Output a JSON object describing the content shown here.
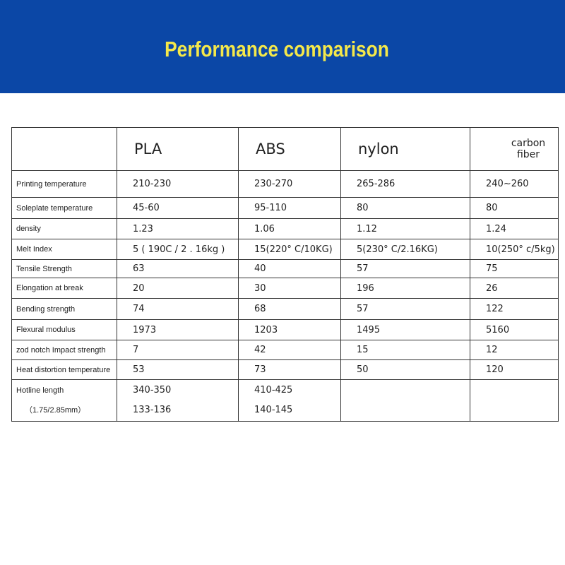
{
  "header": {
    "title": "Performance comparison"
  },
  "table": {
    "columns": [
      "PLA",
      "ABS",
      "nylon",
      "carbon fiber"
    ],
    "rows": [
      {
        "label": [
          "Printing temperature"
        ],
        "values": [
          [
            "210-230"
          ],
          [
            "230-270"
          ],
          [
            "265-286"
          ],
          [
            "240~260"
          ]
        ]
      },
      {
        "label": [
          "Soleplate temperature"
        ],
        "values": [
          [
            "45-60"
          ],
          [
            "95-110"
          ],
          [
            "80"
          ],
          [
            "80"
          ]
        ]
      },
      {
        "label": [
          "density"
        ],
        "values": [
          [
            "1.23"
          ],
          [
            "1.06"
          ],
          [
            "1.12"
          ],
          [
            "1.24"
          ]
        ]
      },
      {
        "label": [
          "Melt Index"
        ],
        "values": [
          [
            "5 ( 190C / 2 . 16kg )"
          ],
          [
            "15(220° C/10KG)"
          ],
          [
            "5(230° C/2.16KG)"
          ],
          [
            "10(250° c/5kg)"
          ]
        ]
      },
      {
        "label": [
          "Tensile Strength"
        ],
        "values": [
          [
            "63"
          ],
          [
            "40"
          ],
          [
            "57"
          ],
          [
            "75"
          ]
        ]
      },
      {
        "label": [
          "Elongation at break"
        ],
        "values": [
          [
            "20"
          ],
          [
            "30"
          ],
          [
            "196"
          ],
          [
            "26"
          ]
        ]
      },
      {
        "label": [
          "Bending strength"
        ],
        "values": [
          [
            "74"
          ],
          [
            "68"
          ],
          [
            "57"
          ],
          [
            "122"
          ]
        ]
      },
      {
        "label": [
          "Flexural modulus"
        ],
        "values": [
          [
            "1973"
          ],
          [
            "1203"
          ],
          [
            "1495"
          ],
          [
            "5160"
          ]
        ]
      },
      {
        "label": [
          "zod notch Impact strength"
        ],
        "values": [
          [
            "7"
          ],
          [
            "42"
          ],
          [
            "15"
          ],
          [
            "12"
          ]
        ]
      },
      {
        "label": [
          "Heat distortion temperature"
        ],
        "values": [
          [
            "53"
          ],
          [
            "73"
          ],
          [
            "50"
          ],
          [
            "120"
          ]
        ]
      },
      {
        "label": [
          "Hotline length",
          "（1.75/2.85mm）"
        ],
        "values": [
          [
            "340-350",
            "133-136"
          ],
          [
            "410-425",
            "140-145"
          ]
        ]
      }
    ]
  }
}
